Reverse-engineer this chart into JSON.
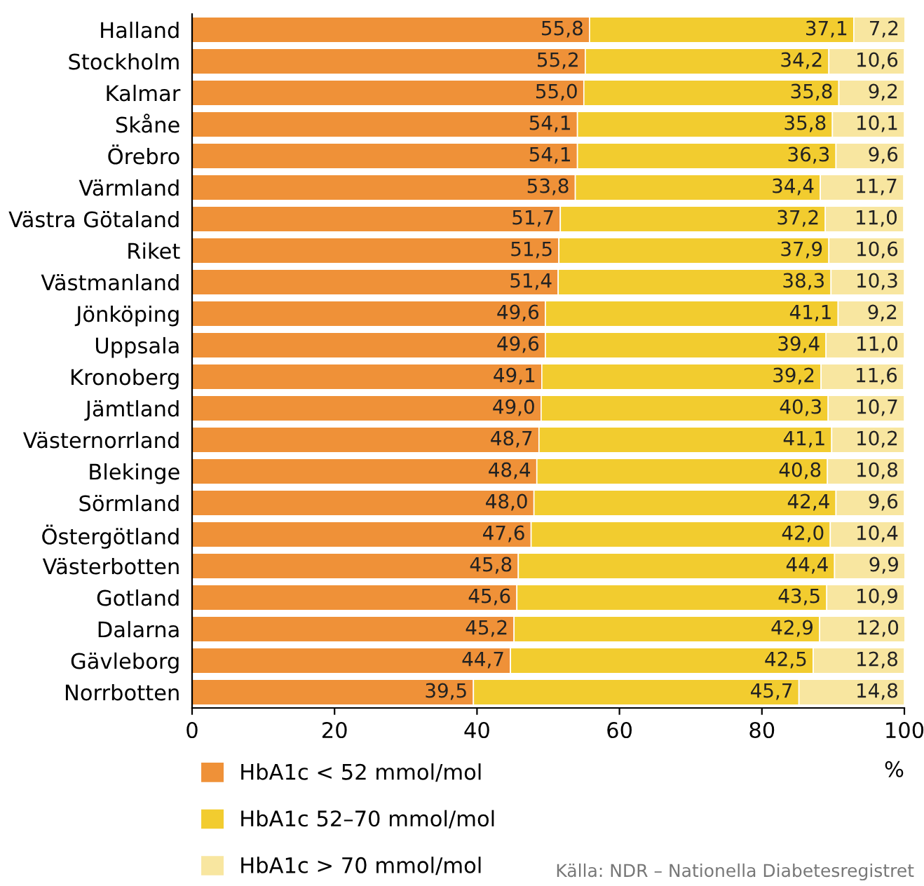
{
  "chart_data": {
    "type": "bar",
    "orientation": "horizontal",
    "stacked": true,
    "categories": [
      "Halland",
      "Stockholm",
      "Kalmar",
      "Skåne",
      "Örebro",
      "Värmland",
      "Västra Götaland",
      "Riket",
      "Västmanland",
      "Jönköping",
      "Uppsala",
      "Kronoberg",
      "Jämtland",
      "Västernorrland",
      "Blekinge",
      "Sörmland",
      "Östergötland",
      "Västerbotten",
      "Gotland",
      "Dalarna",
      "Gävleborg",
      "Norrbotten"
    ],
    "series": [
      {
        "name": "HbA1c < 52 mmol/mol",
        "color": "#ef9138",
        "values": [
          55.8,
          55.2,
          55.0,
          54.1,
          54.1,
          53.8,
          51.7,
          51.5,
          51.4,
          49.6,
          49.6,
          49.1,
          49.0,
          48.7,
          48.4,
          48.0,
          47.6,
          45.8,
          45.6,
          45.2,
          44.7,
          39.5
        ],
        "value_labels": [
          "55,8",
          "55,2",
          "55,0",
          "54,1",
          "54,1",
          "53,8",
          "51,7",
          "51,5",
          "51,4",
          "49,6",
          "49,6",
          "49,1",
          "49,0",
          "48,7",
          "48,4",
          "48,0",
          "47,6",
          "45,8",
          "45,6",
          "45,2",
          "44,7",
          "39,5"
        ]
      },
      {
        "name": "HbA1c 52–70 mmol/mol",
        "color": "#f2cc2f",
        "values": [
          37.1,
          34.2,
          35.8,
          35.8,
          36.3,
          34.4,
          37.2,
          37.9,
          38.3,
          41.1,
          39.4,
          39.2,
          40.3,
          41.1,
          40.8,
          42.4,
          42.0,
          44.4,
          43.5,
          42.9,
          42.5,
          45.7
        ],
        "value_labels": [
          "37,1",
          "34,2",
          "35,8",
          "35,8",
          "36,3",
          "34,4",
          "37,2",
          "37,9",
          "38,3",
          "41,1",
          "39,4",
          "39,2",
          "40,3",
          "41,1",
          "40,8",
          "42,4",
          "42,0",
          "44,4",
          "43,5",
          "42,9",
          "42,5",
          "45,7"
        ]
      },
      {
        "name": "HbA1c > 70 mmol/mol",
        "color": "#f8e6a0",
        "values": [
          7.2,
          10.6,
          9.2,
          10.1,
          9.6,
          11.7,
          11.0,
          10.6,
          10.3,
          9.2,
          11.0,
          11.6,
          10.7,
          10.2,
          10.8,
          9.6,
          10.4,
          9.9,
          10.9,
          12.0,
          12.8,
          14.8
        ],
        "value_labels": [
          "7,2",
          "10,6",
          "9,2",
          "10,1",
          "9,6",
          "11,7",
          "11,0",
          "10,6",
          "10,3",
          "9,2",
          "11,0",
          "11,6",
          "10,7",
          "10,2",
          "10,8",
          "9,6",
          "10,4",
          "9,9",
          "10,9",
          "12,0",
          "12,8",
          "14,8"
        ]
      }
    ],
    "xlim": [
      0,
      100
    ],
    "xticks": [
      0,
      20,
      40,
      60,
      80,
      100
    ],
    "xlabel": "%",
    "grid": false,
    "legend": "bottom",
    "annotations": [
      "Källa: NDR – Nationella Diabetesregistret"
    ]
  }
}
